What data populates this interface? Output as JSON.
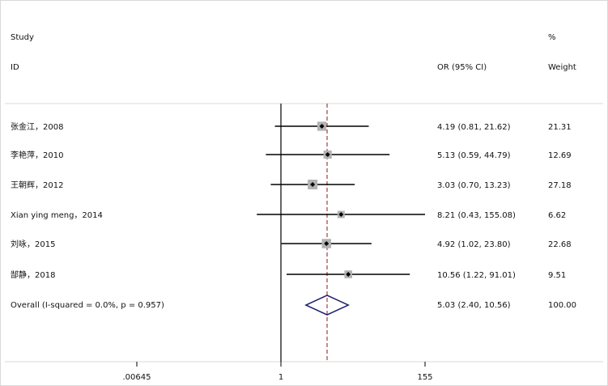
{
  "chart_data": {
    "type": "forest",
    "header": {
      "study_line1": "Study",
      "study_line2": "ID",
      "effect_label": "OR (95% CI)",
      "weight_line1": "%",
      "weight_line2": "Weight"
    },
    "studies": [
      {
        "label": "张金江，2008",
        "or": 4.19,
        "lower": 0.81,
        "upper": 21.62,
        "ci_text": "4.19 (0.81, 21.62)",
        "weight": "21.31"
      },
      {
        "label": "李艳萍，2010",
        "or": 5.13,
        "lower": 0.59,
        "upper": 44.79,
        "ci_text": "5.13 (0.59, 44.79)",
        "weight": "12.69"
      },
      {
        "label": "王朝辉，2012",
        "or": 3.03,
        "lower": 0.7,
        "upper": 13.23,
        "ci_text": "3.03 (0.70, 13.23)",
        "weight": "27.18"
      },
      {
        "label": "Xian ying meng，2014",
        "or": 8.21,
        "lower": 0.43,
        "upper": 155.08,
        "ci_text": "8.21 (0.43, 155.08)",
        "weight": "6.62"
      },
      {
        "label": "刘咏，2015",
        "or": 4.92,
        "lower": 1.02,
        "upper": 23.8,
        "ci_text": "4.92 (1.02, 23.80)",
        "weight": "22.68"
      },
      {
        "label": "郜静，2018",
        "or": 10.56,
        "lower": 1.22,
        "upper": 91.01,
        "ci_text": "10.56 (1.22, 91.01)",
        "weight": "9.51"
      }
    ],
    "overall": {
      "label": "Overall  (I-squared = 0.0%, p = 0.957)",
      "or": 5.03,
      "lower": 2.4,
      "upper": 10.56,
      "ci_text": "5.03 (2.40, 10.56)",
      "weight": "100.00"
    },
    "x_axis": {
      "scale": "log",
      "range": [
        0.00645,
        155
      ],
      "ticks": [
        {
          "value": 0.00645,
          "label": ".00645"
        },
        {
          "value": 1,
          "label": "1"
        },
        {
          "value": 155,
          "label": "155"
        }
      ]
    },
    "null_line": 1,
    "colors": {
      "ci_line": "#000000",
      "weight_box": "#b3b3b3",
      "overall_diamond": "#1a1a6e",
      "overall_line": "#8b1a1a",
      "frame": "#d9d9d9"
    }
  }
}
